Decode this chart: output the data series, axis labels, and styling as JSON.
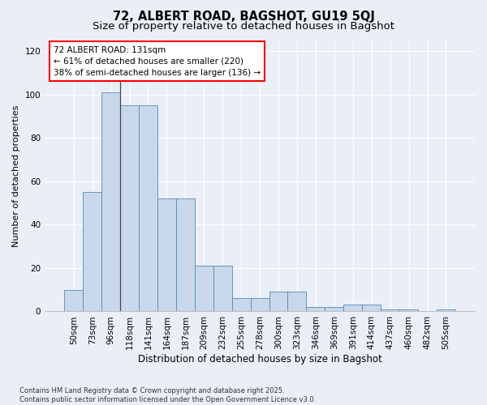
{
  "title": "72, ALBERT ROAD, BAGSHOT, GU19 5QJ",
  "subtitle": "Size of property relative to detached houses in Bagshot",
  "xlabel": "Distribution of detached houses by size in Bagshot",
  "ylabel": "Number of detached properties",
  "categories": [
    "50sqm",
    "73sqm",
    "96sqm",
    "118sqm",
    "141sqm",
    "164sqm",
    "187sqm",
    "209sqm",
    "232sqm",
    "255sqm",
    "278sqm",
    "300sqm",
    "323sqm",
    "346sqm",
    "369sqm",
    "391sqm",
    "414sqm",
    "437sqm",
    "460sqm",
    "482sqm",
    "505sqm"
  ],
  "bar_values": [
    10,
    55,
    101,
    95,
    95,
    52,
    52,
    21,
    21,
    6,
    6,
    9,
    9,
    2,
    2,
    3,
    3,
    1,
    1,
    0,
    1
  ],
  "bar_color": "#c8d8ea",
  "bar_edge_color": "#5588bb",
  "annotation_text": "72 ALBERT ROAD: 131sqm\n← 61% of detached houses are smaller (220)\n38% of semi-detached houses are larger (136) →",
  "ylim": [
    0,
    125
  ],
  "yticks": [
    0,
    20,
    40,
    60,
    80,
    100,
    120
  ],
  "bg_color": "#eaeff7",
  "plot_bg_color": "#eaeff7",
  "grid_color": "#ffffff",
  "footer": "Contains HM Land Registry data © Crown copyright and database right 2025.\nContains public sector information licensed under the Open Government Licence v3.0.",
  "title_fontsize": 10.5,
  "subtitle_fontsize": 9.5,
  "xlabel_fontsize": 8.5,
  "ylabel_fontsize": 8,
  "tick_fontsize": 7.5,
  "annotation_fontsize": 7.5,
  "footer_fontsize": 6
}
